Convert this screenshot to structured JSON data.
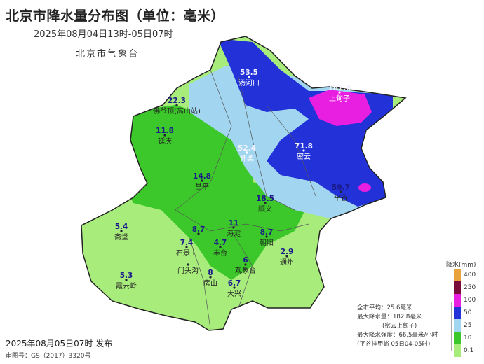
{
  "title": "北京市降水量分布图（单位：毫米）",
  "subtitle": "2025年08月04日13时-05日07时",
  "organization": "北京市气象台",
  "issue_time": "2025年08月05日07时 发布",
  "map_approval": "审图号：GS（2017）3320号",
  "stations": [
    {
      "name": "汤河口",
      "value": "53.5"
    },
    {
      "name": "上甸子",
      "value": "182.8"
    },
    {
      "name": "佛爷顶(高山站)",
      "value": "22.3"
    },
    {
      "name": "延庆",
      "value": "11.8"
    },
    {
      "name": "怀柔",
      "value": "52.4"
    },
    {
      "name": "密云",
      "value": "71.8"
    },
    {
      "name": "昌平",
      "value": "14.8"
    },
    {
      "name": "平谷",
      "value": "59.7"
    },
    {
      "name": "顺义",
      "value": "18.5"
    },
    {
      "name": "斋堂",
      "value": "5.4"
    },
    {
      "name": "海淀",
      "value": "11"
    },
    {
      "name": "",
      "value": "8.7"
    },
    {
      "name": "朝阳",
      "value": "8.7"
    },
    {
      "name": "石景山",
      "value": "7.4"
    },
    {
      "name": "丰台",
      "value": "4.7"
    },
    {
      "name": "门头沟",
      "value": ""
    },
    {
      "name": "通州",
      "value": "2.9"
    },
    {
      "name": "房山",
      "value": "8"
    },
    {
      "name": "观象台",
      "value": "6"
    },
    {
      "name": "大兴",
      "value": "6.7"
    },
    {
      "name": "霞云岭",
      "value": "5.3"
    }
  ],
  "stats": {
    "avg": "全市平均：25.6毫米",
    "max": "最大降水量：182.8毫米",
    "max_site": "(密云上甸子)",
    "max_intensity": "最大降水强度：66.5毫米/小时",
    "intensity_site": "(平谷挂甲峪  05日04-05时)"
  },
  "legend": {
    "title": "降水(mm)",
    "levels": [
      {
        "label": "400",
        "color": "#e8a33c"
      },
      {
        "label": "250",
        "color": "#7a0a3a"
      },
      {
        "label": "100",
        "color": "#e81ee0"
      },
      {
        "label": "50",
        "color": "#2232d8"
      },
      {
        "label": "25",
        "color": "#a2d6f0"
      },
      {
        "label": "10",
        "color": "#3cc82a"
      },
      {
        "label": "0.1",
        "color": "#a8ec7c"
      }
    ]
  }
}
